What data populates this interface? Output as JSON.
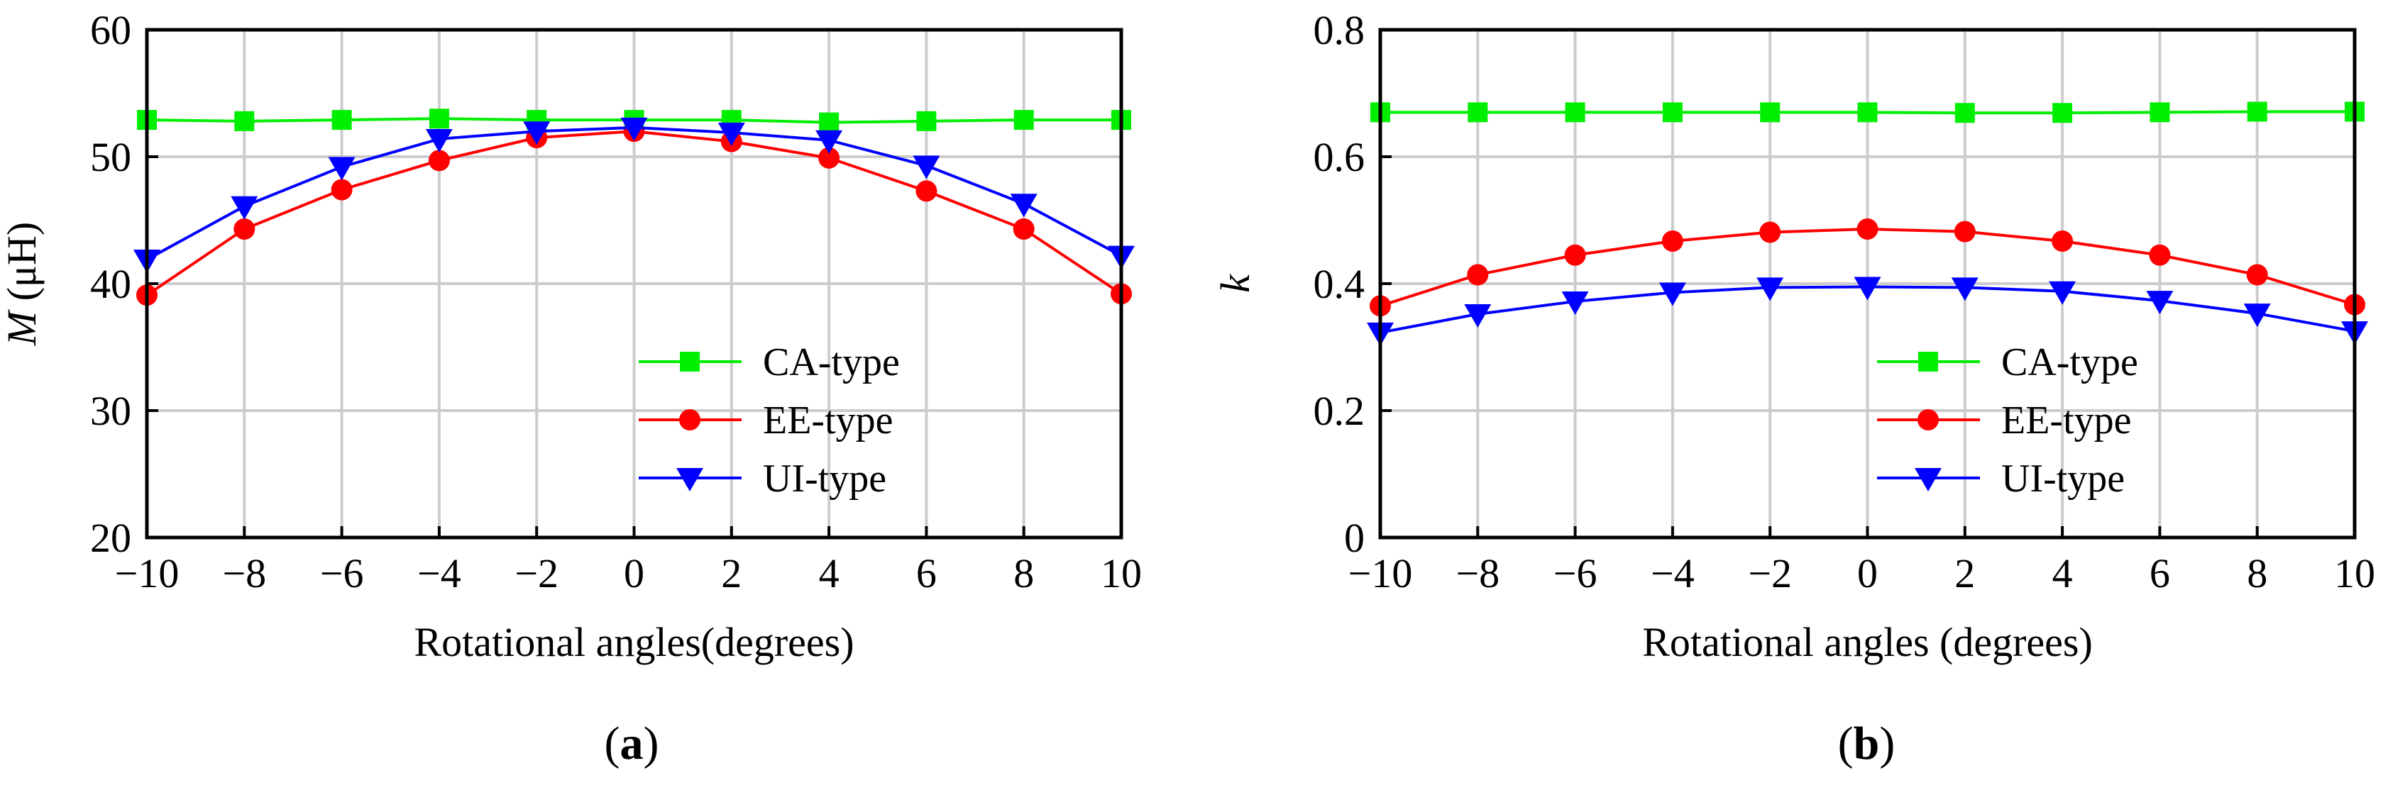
{
  "colors": {
    "ca": "#00ee00",
    "ee": "#ff0000",
    "ui": "#0000ff",
    "grid": "#cccccc",
    "axis": "#000000"
  },
  "chart_data": [
    {
      "type": "line",
      "panel_label": "a",
      "xlabel": "Rotational angles(degrees)",
      "ylabel_symbol": "M",
      "ylabel_unit": "(μH)",
      "x": [
        -10,
        -8,
        -6,
        -4,
        -2,
        0,
        2,
        4,
        6,
        8,
        10
      ],
      "xticks": [
        "−10",
        "−8",
        "−6",
        "−4",
        "−2",
        "0",
        "2",
        "4",
        "6",
        "8",
        "10"
      ],
      "ylim": [
        20,
        60
      ],
      "yticks": [
        "20",
        "30",
        "40",
        "50",
        "60"
      ],
      "yticks_values": [
        20,
        30,
        40,
        50,
        60
      ],
      "grid": true,
      "legend_position": "lower-right",
      "series": [
        {
          "name": "CA-type",
          "color": "#00ee00",
          "marker": "square",
          "values": [
            52.9,
            52.8,
            52.9,
            53.0,
            52.9,
            52.9,
            52.9,
            52.7,
            52.8,
            52.9,
            52.9
          ]
        },
        {
          "name": "EE-type",
          "color": "#ff0000",
          "marker": "circle",
          "values": [
            39.1,
            44.3,
            47.4,
            49.7,
            51.5,
            52.0,
            51.2,
            49.9,
            47.3,
            44.3,
            39.2
          ]
        },
        {
          "name": "UI-type",
          "color": "#0000ff",
          "marker": "triangle-down",
          "values": [
            41.9,
            46.1,
            49.2,
            51.4,
            52.0,
            52.3,
            51.9,
            51.3,
            49.3,
            46.3,
            42.2
          ]
        }
      ]
    },
    {
      "type": "line",
      "panel_label": "b",
      "xlabel": "Rotational angles (degrees)",
      "ylabel_symbol": "k",
      "ylabel_unit": "",
      "x": [
        -10,
        -8,
        -6,
        -4,
        -2,
        0,
        2,
        4,
        6,
        8,
        10
      ],
      "xticks": [
        "−10",
        "−8",
        "−6",
        "−4",
        "−2",
        "0",
        "2",
        "4",
        "6",
        "8",
        "10"
      ],
      "ylim": [
        0,
        0.8
      ],
      "yticks": [
        "0",
        "0.2",
        "0.4",
        "0.6",
        "0.8"
      ],
      "yticks_values": [
        0,
        0.2,
        0.4,
        0.6,
        0.8
      ],
      "grid": true,
      "legend_position": "lower-right",
      "series": [
        {
          "name": "CA-type",
          "color": "#00ee00",
          "marker": "square",
          "values": [
            0.67,
            0.67,
            0.67,
            0.67,
            0.67,
            0.67,
            0.669,
            0.669,
            0.67,
            0.671,
            0.671
          ]
        },
        {
          "name": "EE-type",
          "color": "#ff0000",
          "marker": "circle",
          "values": [
            0.365,
            0.414,
            0.445,
            0.467,
            0.481,
            0.486,
            0.482,
            0.467,
            0.445,
            0.414,
            0.367
          ]
        },
        {
          "name": "UI-type",
          "color": "#0000ff",
          "marker": "triangle-down",
          "values": [
            0.323,
            0.352,
            0.372,
            0.386,
            0.394,
            0.395,
            0.394,
            0.388,
            0.373,
            0.353,
            0.325
          ]
        }
      ]
    }
  ]
}
